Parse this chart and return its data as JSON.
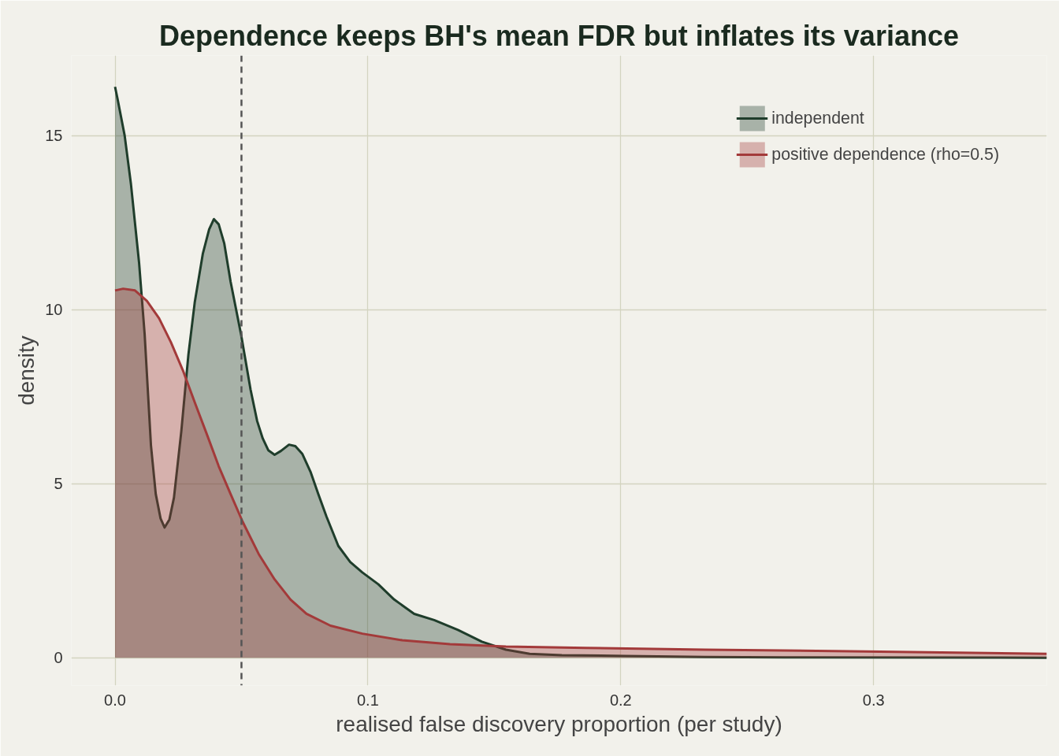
{
  "chart_data": {
    "type": "area",
    "title": "Dependence keeps BH's mean FDR but inflates its variance",
    "xlabel": "realised false discovery proportion (per study)",
    "ylabel": "density",
    "xlim": [
      -0.0173,
      0.3685
    ],
    "ylim": [
      -0.8,
      17.3
    ],
    "xticks": [
      {
        "value": 0,
        "label": "0.0"
      },
      0.1,
      0.2,
      0.3
    ],
    "yticks": [
      0,
      5,
      10,
      15
    ],
    "grid": true,
    "legend": "top right",
    "ref_lines": [
      {
        "axis": "x",
        "value": 0.05,
        "label": null,
        "color": "#555555",
        "line_style": "dashed"
      }
    ],
    "series": [
      {
        "name": "independent",
        "color": "#1f3d2b",
        "x": [
          0,
          0.001,
          0.0038,
          0.0063,
          0.0095,
          0.0117,
          0.0142,
          0.0161,
          0.018,
          0.0196,
          0.0215,
          0.0233,
          0.0262,
          0.029,
          0.0315,
          0.0347,
          0.0372,
          0.0391,
          0.041,
          0.0432,
          0.0457,
          0.0498,
          0.0536,
          0.0562,
          0.0584,
          0.0606,
          0.0631,
          0.0656,
          0.0688,
          0.0713,
          0.0741,
          0.0773,
          0.0804,
          0.0836,
          0.0883,
          0.093,
          0.0978,
          0.1041,
          0.1104,
          0.1183,
          0.1262,
          0.1356,
          0.1451,
          0.1546,
          0.164,
          0.1767,
          0.2019,
          0.2334,
          0.265,
          0.3685
        ],
        "values": [
          16.4,
          16.05,
          15.0,
          13.6,
          11.35,
          9.3,
          6.1,
          4.7,
          4.0,
          3.74,
          3.97,
          4.6,
          6.5,
          8.7,
          10.2,
          11.6,
          12.3,
          12.6,
          12.45,
          11.9,
          10.8,
          9.3,
          7.7,
          6.8,
          6.3,
          5.96,
          5.83,
          5.94,
          6.12,
          6.08,
          5.85,
          5.34,
          4.7,
          4.06,
          3.21,
          2.75,
          2.45,
          2.11,
          1.67,
          1.26,
          1.08,
          0.8,
          0.46,
          0.23,
          0.11,
          0.07,
          0.05,
          0.02,
          0.01,
          0.0
        ]
      },
      {
        "name": "positive dependence (rho=0.5)",
        "color": "#a33a3a",
        "x": [
          0,
          0.0032,
          0.0079,
          0.0126,
          0.0174,
          0.0221,
          0.0268,
          0.0315,
          0.0363,
          0.041,
          0.0457,
          0.0505,
          0.0568,
          0.0631,
          0.0694,
          0.0757,
          0.0852,
          0.0978,
          0.1136,
          0.1325,
          0.1546,
          0.1861,
          0.2334,
          0.2965,
          0.3685
        ],
        "values": [
          10.55,
          10.6,
          10.55,
          10.25,
          9.75,
          9.06,
          8.26,
          7.34,
          6.42,
          5.5,
          4.7,
          3.9,
          2.98,
          2.25,
          1.67,
          1.26,
          0.92,
          0.69,
          0.5,
          0.39,
          0.32,
          0.28,
          0.23,
          0.18,
          0.11
        ]
      }
    ]
  }
}
